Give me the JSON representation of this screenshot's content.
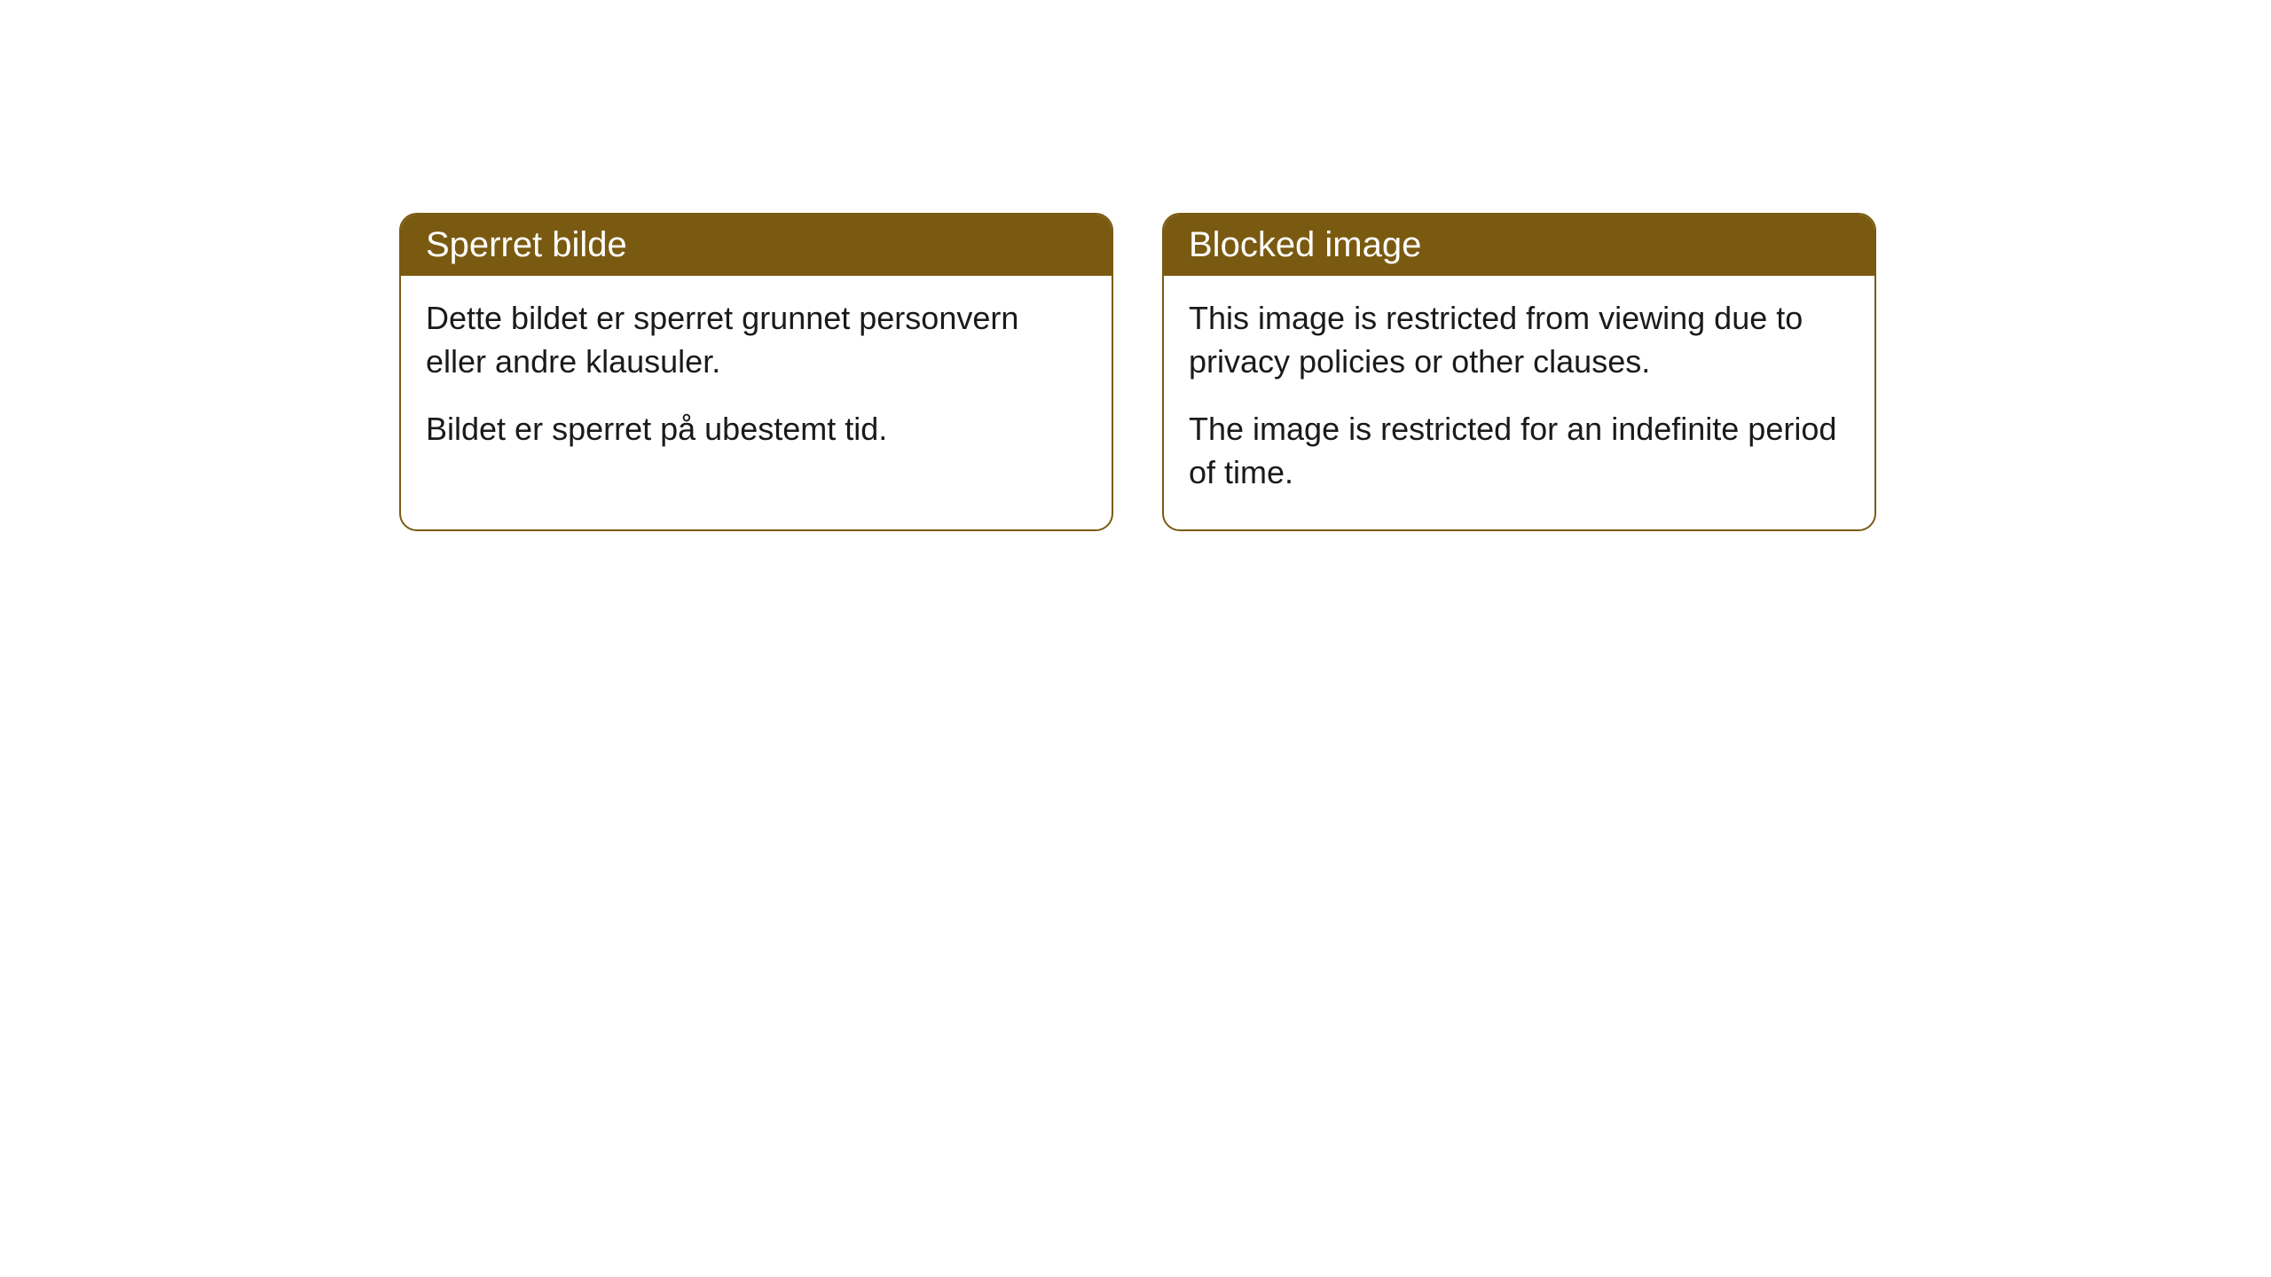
{
  "cards": [
    {
      "title": "Sperret bilde",
      "paragraph1": "Dette bildet er sperret grunnet personvern eller andre klausuler.",
      "paragraph2": "Bildet er sperret på ubestemt tid."
    },
    {
      "title": "Blocked image",
      "paragraph1": "This image is restricted from viewing due to privacy policies or other clauses.",
      "paragraph2": "The image is restricted for an indefinite period of time."
    }
  ],
  "styling": {
    "header_bg_color": "#7a5a11",
    "header_text_color": "#ffffff",
    "border_color": "#7a5a11",
    "body_text_color": "#1a1a1a",
    "card_bg_color": "#ffffff",
    "page_bg_color": "#ffffff",
    "border_radius": "20px",
    "header_fontsize": "40px",
    "body_fontsize": "36px"
  }
}
